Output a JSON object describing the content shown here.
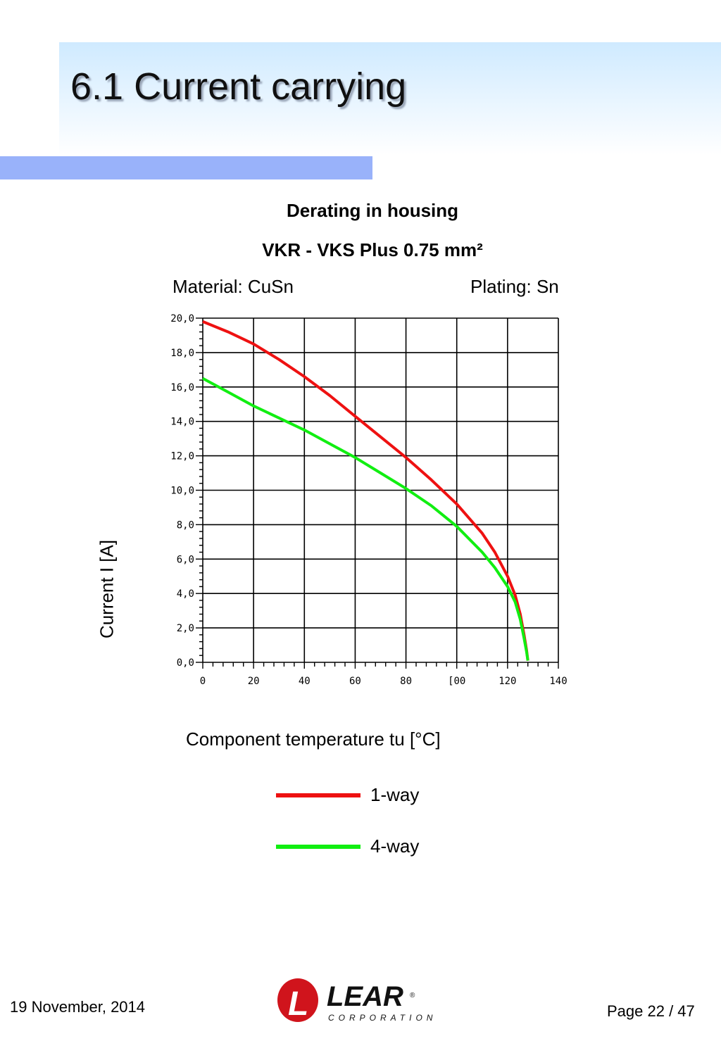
{
  "slide": {
    "title": "6.1 Current carrying",
    "date": "19 November, 2014",
    "page": "Page 22 / 47"
  },
  "logo": {
    "letter": "L",
    "name": "LEAR",
    "mark": "®",
    "tagline": "CORPORATION",
    "color": "#d0141c"
  },
  "colors": {
    "title_band": "#cfeaff",
    "accent_bar": "#99b2fa",
    "series_1way": "#ee1111",
    "series_4way": "#11ee11"
  },
  "chart_data": {
    "type": "line",
    "title": "Derating in housing",
    "subtitle": "VKR - VKS  Plus 0.75 mm²",
    "material": "Material: CuSn",
    "plating": "Plating: Sn",
    "xlabel": "Component temperature tu [°C]",
    "ylabel": "Current I [A]",
    "xlim": [
      0,
      140
    ],
    "ylim": [
      0,
      20
    ],
    "grid": true,
    "legend_position": "bottom",
    "x_ticks": [
      "0",
      "20",
      "40",
      "60",
      "80",
      "[00",
      "120",
      "140"
    ],
    "y_ticks": [
      "0,0",
      "2,0",
      "4,0",
      "6,0",
      "8,0",
      "10,0",
      "12,0",
      "14,0",
      "16,0",
      "18,0",
      "20,0"
    ],
    "series": [
      {
        "name": "1-way",
        "color": "#ee1111",
        "points": [
          [
            0,
            19.8
          ],
          [
            10,
            19.2
          ],
          [
            20,
            18.5
          ],
          [
            30,
            17.6
          ],
          [
            40,
            16.6
          ],
          [
            50,
            15.5
          ],
          [
            60,
            14.3
          ],
          [
            70,
            13.1
          ],
          [
            80,
            11.9
          ],
          [
            90,
            10.6
          ],
          [
            100,
            9.2
          ],
          [
            110,
            7.5
          ],
          [
            115,
            6.4
          ],
          [
            120,
            5.0
          ],
          [
            123,
            3.9
          ],
          [
            125,
            2.8
          ],
          [
            126.5,
            1.6
          ],
          [
            127.5,
            0.7
          ],
          [
            128,
            0.1
          ]
        ]
      },
      {
        "name": "4-way",
        "color": "#11ee11",
        "points": [
          [
            0,
            16.5
          ],
          [
            10,
            15.7
          ],
          [
            20,
            14.9
          ],
          [
            30,
            14.2
          ],
          [
            40,
            13.5
          ],
          [
            50,
            12.7
          ],
          [
            60,
            11.9
          ],
          [
            70,
            11.0
          ],
          [
            80,
            10.1
          ],
          [
            90,
            9.1
          ],
          [
            100,
            7.9
          ],
          [
            110,
            6.4
          ],
          [
            115,
            5.5
          ],
          [
            120,
            4.4
          ],
          [
            123,
            3.5
          ],
          [
            125,
            2.5
          ],
          [
            126.5,
            1.4
          ],
          [
            127.5,
            0.6
          ],
          [
            128,
            0.1
          ]
        ]
      }
    ]
  }
}
